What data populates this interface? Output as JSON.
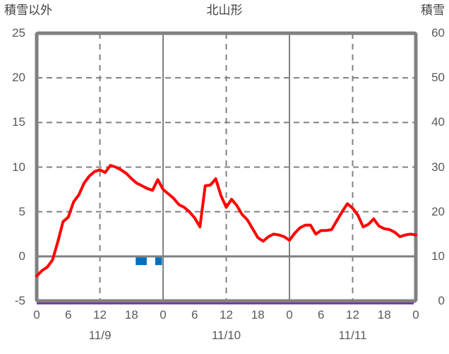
{
  "header": {
    "left_axis_title": "積雪以外",
    "chart_title": "北山形",
    "right_axis_title": "積雪"
  },
  "colors": {
    "red_line": "#ff0000",
    "blue_bars": "#0070c0",
    "purple_line": "#7030a0",
    "grid_gray": "#808080",
    "text_gray": "#595959",
    "title_gray": "#404040",
    "background": "#ffffff"
  },
  "chart_data": {
    "type": "line",
    "title": "北山形",
    "grid": true,
    "legend": "none",
    "left_axis": {
      "label": "積雪以外",
      "min": -5,
      "max": 25,
      "ticks": [
        25,
        20,
        15,
        10,
        5,
        0,
        -5
      ],
      "zero_line_value": 0
    },
    "right_axis": {
      "label": "積雪",
      "min": 0,
      "max": 60,
      "ticks": [
        60,
        50,
        40,
        30,
        20,
        10,
        0
      ]
    },
    "x_axis": {
      "range_hours": [
        0,
        72
      ],
      "hour_tick_step": 6,
      "hour_tick_labels": [
        "0",
        "6",
        "12",
        "18",
        "0",
        "6",
        "12",
        "18",
        "0",
        "6",
        "12",
        "18",
        "0"
      ],
      "date_labels": [
        {
          "label": "11/9",
          "hour": 12
        },
        {
          "label": "11/10",
          "hour": 36
        },
        {
          "label": "11/11",
          "hour": 60
        }
      ],
      "gridlines": {
        "dashed_hours": [
          12,
          36,
          60
        ],
        "solid_hours": [
          24,
          48
        ]
      }
    },
    "series": [
      {
        "id": "red-line",
        "type": "line",
        "axis": "left",
        "color": "#ff0000",
        "start_hour": 0,
        "step_hours": 1,
        "values": [
          -2.2,
          -1.6,
          -1.2,
          -0.4,
          1.6,
          3.9,
          4.4,
          6.1,
          6.9,
          8.2,
          9.0,
          9.5,
          9.7,
          9.4,
          10.2,
          10.0,
          9.7,
          9.3,
          8.7,
          8.2,
          7.9,
          7.6,
          7.4,
          8.6,
          7.5,
          7.0,
          6.5,
          5.8,
          5.5,
          5.0,
          4.3,
          3.3,
          7.9,
          8.0,
          8.7,
          6.8,
          5.5,
          6.4,
          5.7,
          4.7,
          4.1,
          3.1,
          2.1,
          1.7,
          2.2,
          2.5,
          2.4,
          2.2,
          1.8,
          2.6,
          3.2,
          3.5,
          3.5,
          2.5,
          2.9,
          2.9,
          3.0,
          4.0,
          5.0,
          5.9,
          5.4,
          4.6,
          3.3,
          3.6,
          4.2,
          3.4,
          3.1,
          3.0,
          2.7,
          2.2,
          2.4,
          2.5,
          2.4
        ]
      },
      {
        "id": "blue-bars",
        "type": "bar",
        "axis": "left",
        "color": "#0070c0",
        "bars": [
          {
            "from_hour": 18.8,
            "to_hour": 20.9,
            "value": -0.9
          },
          {
            "from_hour": 22.5,
            "to_hour": 23.8,
            "value": -0.9
          }
        ]
      },
      {
        "id": "purple-line",
        "type": "line",
        "axis": "right",
        "color": "#7030a0",
        "constant_value": 0
      }
    ]
  }
}
